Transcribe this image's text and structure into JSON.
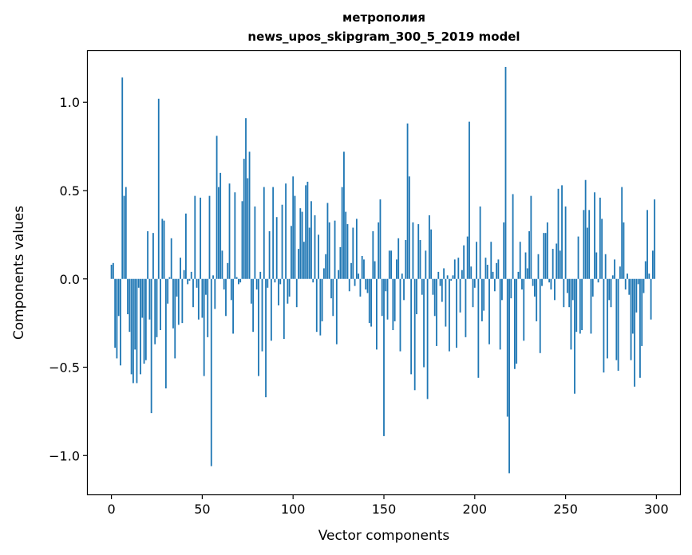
{
  "chart_data": {
    "type": "bar",
    "title_line1": "метрополия",
    "title_line2": "news_upos_skipgram_300_5_2019 model",
    "xlabel": "Vector components",
    "ylabel": "Components values",
    "xlim": [
      -13,
      313
    ],
    "ylim": [
      -1.22,
      1.29
    ],
    "xticks": [
      0,
      50,
      100,
      150,
      200,
      250,
      300
    ],
    "xtick_labels": [
      "0",
      "50",
      "100",
      "150",
      "200",
      "250",
      "300"
    ],
    "yticks": [
      -1.0,
      -0.5,
      0.0,
      0.5,
      1.0
    ],
    "ytick_labels": [
      "−1.0",
      "−0.5",
      "0.0",
      "0.5",
      "1.0"
    ],
    "bar_color": "#1f77b4",
    "grid": false,
    "values": [
      0.08,
      0.09,
      -0.39,
      -0.45,
      -0.21,
      -0.49,
      1.14,
      0.47,
      0.52,
      -0.2,
      -0.3,
      -0.54,
      -0.59,
      -0.4,
      -0.59,
      -0.05,
      -0.54,
      -0.22,
      -0.48,
      -0.46,
      0.27,
      -0.23,
      -0.76,
      0.26,
      -0.37,
      -0.33,
      1.02,
      -0.29,
      0.34,
      0.33,
      -0.62,
      -0.14,
      0.01,
      0.23,
      -0.28,
      -0.45,
      -0.1,
      -0.26,
      0.12,
      -0.25,
      0.05,
      0.37,
      -0.03,
      -0.01,
      0.04,
      -0.16,
      0.47,
      -0.05,
      -0.23,
      0.46,
      -0.22,
      -0.55,
      -0.09,
      -0.33,
      0.47,
      -1.06,
      0.02,
      -0.17,
      0.81,
      0.52,
      0.6,
      0.16,
      -0.06,
      -0.21,
      0.09,
      0.54,
      -0.12,
      -0.31,
      0.49,
      0.01,
      -0.03,
      -0.02,
      0.44,
      0.68,
      0.91,
      0.57,
      0.72,
      -0.14,
      -0.3,
      0.41,
      -0.06,
      -0.55,
      0.04,
      -0.41,
      0.52,
      -0.67,
      -0.05,
      0.27,
      -0.35,
      0.52,
      -0.02,
      0.35,
      -0.15,
      -0.03,
      0.42,
      -0.34,
      0.54,
      -0.14,
      -0.1,
      0.3,
      0.58,
      0.47,
      -0.16,
      0.17,
      0.4,
      0.38,
      0.21,
      0.53,
      0.55,
      0.29,
      0.44,
      -0.02,
      0.36,
      -0.3,
      0.25,
      -0.32,
      -0.24,
      0.06,
      0.14,
      0.43,
      0.32,
      -0.11,
      -0.21,
      0.33,
      -0.37,
      0.05,
      0.18,
      0.52,
      0.72,
      0.38,
      0.31,
      -0.07,
      0.09,
      0.29,
      -0.04,
      0.34,
      0.03,
      -0.1,
      0.13,
      0.11,
      -0.06,
      -0.08,
      -0.25,
      -0.27,
      0.27,
      0.1,
      -0.4,
      0.32,
      0.45,
      -0.21,
      -0.89,
      -0.07,
      -0.23,
      0.16,
      0.16,
      -0.29,
      -0.24,
      0.11,
      0.23,
      -0.41,
      0.03,
      -0.12,
      0.22,
      0.88,
      0.58,
      -0.54,
      0.32,
      -0.63,
      -0.2,
      0.31,
      0.22,
      -0.09,
      -0.5,
      0.16,
      -0.68,
      0.36,
      0.28,
      -0.09,
      -0.21,
      -0.38,
      0.04,
      -0.04,
      -0.13,
      0.06,
      -0.27,
      0.02,
      -0.41,
      -0.01,
      0.02,
      0.11,
      -0.39,
      0.12,
      -0.19,
      0.05,
      0.19,
      -0.33,
      0.24,
      0.89,
      0.07,
      -0.16,
      -0.05,
      0.21,
      -0.56,
      0.41,
      -0.24,
      -0.18,
      0.12,
      0.08,
      -0.37,
      0.21,
      0.04,
      -0.07,
      0.09,
      0.11,
      -0.4,
      -0.12,
      0.32,
      1.2,
      -0.78,
      -1.1,
      -0.11,
      0.48,
      -0.51,
      -0.48,
      0.04,
      0.21,
      -0.06,
      -0.35,
      0.15,
      0.06,
      0.27,
      0.47,
      -0.04,
      -0.1,
      -0.24,
      0.14,
      -0.42,
      -0.04,
      0.26,
      0.26,
      0.32,
      -0.02,
      -0.06,
      0.17,
      -0.12,
      0.2,
      0.51,
      0.16,
      0.53,
      -0.16,
      0.41,
      -0.08,
      -0.16,
      -0.4,
      -0.12,
      -0.65,
      -0.3,
      0.24,
      -0.31,
      -0.29,
      0.39,
      0.56,
      0.29,
      0.39,
      -0.31,
      -0.1,
      0.49,
      0.15,
      -0.02,
      0.46,
      0.34,
      -0.53,
      0.14,
      -0.45,
      -0.12,
      -0.16,
      0.02,
      0.11,
      -0.46,
      -0.52,
      0.07,
      0.52,
      0.32,
      -0.06,
      0.03,
      -0.09,
      -0.46,
      -0.31,
      -0.61,
      -0.19,
      -0.03,
      -0.56,
      -0.38,
      -0.08,
      0.1,
      0.39,
      0.03,
      -0.23,
      0.16,
      0.45
    ]
  }
}
